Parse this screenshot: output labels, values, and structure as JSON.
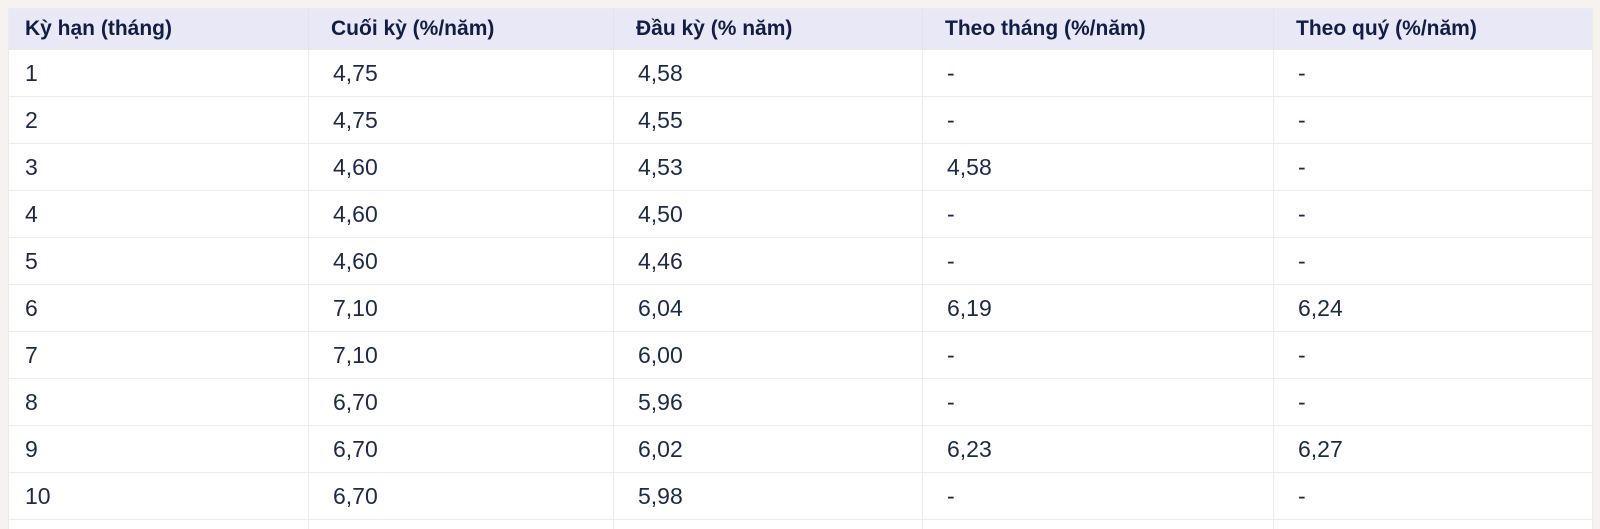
{
  "table": {
    "columns": [
      {
        "key": "term",
        "label": "Kỳ hạn (tháng)"
      },
      {
        "key": "end-of-term",
        "label": "Cuối kỳ (%/năm)"
      },
      {
        "key": "beginning-of-term",
        "label": "Đầu kỳ (% năm)"
      },
      {
        "key": "monthly",
        "label": "Theo tháng (%/năm)"
      },
      {
        "key": "quarterly",
        "label": "Theo quý (%/năm)"
      }
    ],
    "rows": [
      [
        "1",
        "4,75",
        "4,58",
        "-",
        "-"
      ],
      [
        "2",
        "4,75",
        "4,55",
        "-",
        "-"
      ],
      [
        "3",
        "4,60",
        "4,53",
        "4,58",
        "-"
      ],
      [
        "4",
        "4,60",
        "4,50",
        "-",
        "-"
      ],
      [
        "5",
        "4,60",
        "4,46",
        "-",
        "-"
      ],
      [
        "6",
        "7,10",
        "6,04",
        "6,19",
        "6,24"
      ],
      [
        "7",
        "7,10",
        "6,00",
        "-",
        "-"
      ],
      [
        "8",
        "6,70",
        "5,96",
        "-",
        "-"
      ],
      [
        "9",
        "6,70",
        "6,02",
        "6,23",
        "6,27"
      ],
      [
        "10",
        "6,70",
        "5,98",
        "-",
        "-"
      ]
    ],
    "partial_row_visible": true
  },
  "colors": {
    "page_background": "#f6f3ee",
    "header_background": "#e9e8f6",
    "header_text": "#111d45",
    "body_text": "#1c2947",
    "row_divider": "#ececec",
    "cell_background": "#ffffff"
  }
}
